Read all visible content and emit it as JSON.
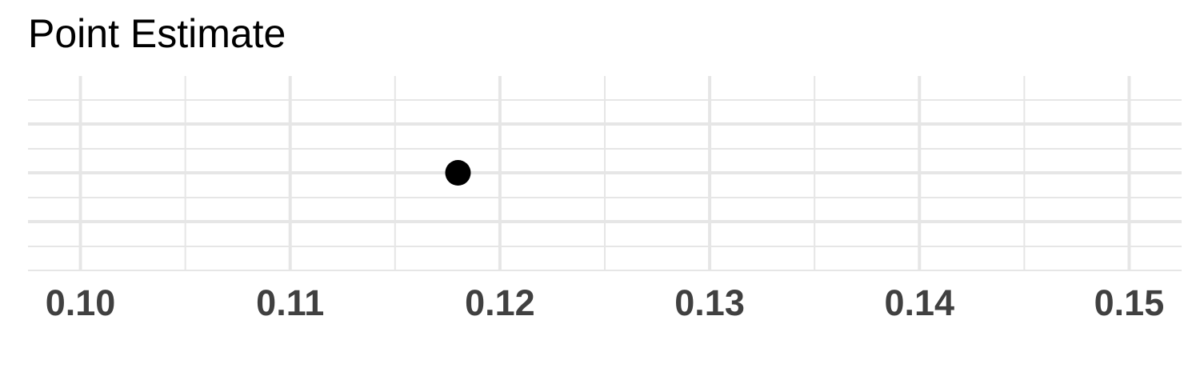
{
  "chart_data": {
    "type": "scatter",
    "title": "Point Estimate",
    "xlabel": "",
    "ylabel": "",
    "xlim": [
      0.0975,
      0.1525
    ],
    "x_ticks": [
      0.1,
      0.11,
      0.12,
      0.13,
      0.14,
      0.15
    ],
    "x_tick_labels": [
      "0.10",
      "0.11",
      "0.12",
      "0.13",
      "0.14",
      "0.15"
    ],
    "points": [
      {
        "x": 0.118
      }
    ],
    "grid": true,
    "legend": "none",
    "colors": {
      "point": "#000000",
      "grid": "#e6e6e6",
      "tick_label": "#404040"
    }
  }
}
